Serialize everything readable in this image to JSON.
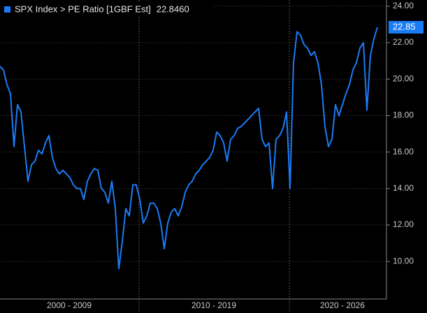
{
  "chart_data": {
    "type": "line",
    "legend": "SPX Index > PE Ratio [1GBF Est]",
    "x_labels": [
      "2000 - 2009",
      "2010 - 2019",
      "2020 - 2026"
    ],
    "series": [
      {
        "name": "SPX Index > PE Ratio [1GBF Est]",
        "color": "#1a7cf5",
        "values": [
          20.7,
          20.5,
          19.7,
          19.2,
          16.3,
          18.6,
          18.2,
          16.3,
          14.4,
          15.3,
          15.5,
          16.1,
          15.9,
          16.5,
          16.9,
          15.7,
          15.1,
          14.8,
          15.0,
          14.8,
          14.6,
          14.2,
          14.0,
          14.0,
          13.4,
          14.4,
          14.8,
          15.1,
          15.0,
          14.0,
          13.8,
          13.2,
          14.4,
          12.9,
          9.6,
          11.1,
          12.9,
          12.5,
          14.2,
          14.2,
          13.4,
          12.1,
          12.5,
          13.2,
          13.2,
          12.9,
          12.1,
          10.7,
          12.1,
          12.7,
          12.9,
          12.5,
          13.0,
          13.8,
          14.2,
          14.4,
          14.8,
          15.0,
          15.3,
          15.5,
          15.7,
          16.1,
          17.1,
          16.9,
          16.5,
          15.5,
          16.7,
          16.9,
          17.3,
          17.4,
          17.6,
          17.8,
          18.0,
          18.2,
          18.4,
          16.7,
          16.3,
          16.5,
          14.0,
          16.7,
          16.9,
          17.3,
          18.2,
          14.0,
          20.9,
          22.6,
          22.4,
          21.9,
          21.7,
          21.3,
          21.5,
          20.9,
          19.7,
          17.4,
          16.3,
          16.7,
          18.6,
          18.0,
          18.6,
          19.2,
          19.7,
          20.5,
          20.9,
          21.7,
          22.0,
          18.3,
          21.3,
          22.2,
          22.846
        ]
      }
    ],
    "last_value": {
      "value": 22.846,
      "label": "22.8460",
      "axis_label": "22.85"
    },
    "ylim": [
      7.94,
      24.34
    ],
    "yticks": [
      {
        "value": 10,
        "label": "10.00"
      },
      {
        "value": 12,
        "label": "12.00"
      },
      {
        "value": 14,
        "label": "14.00"
      },
      {
        "value": 16,
        "label": "16.00"
      },
      {
        "value": 18,
        "label": "18.00"
      },
      {
        "value": 20,
        "label": "20.00"
      },
      {
        "value": 22,
        "label": "22.00"
      },
      {
        "value": 24,
        "label": "24.00"
      }
    ],
    "grid": true
  }
}
